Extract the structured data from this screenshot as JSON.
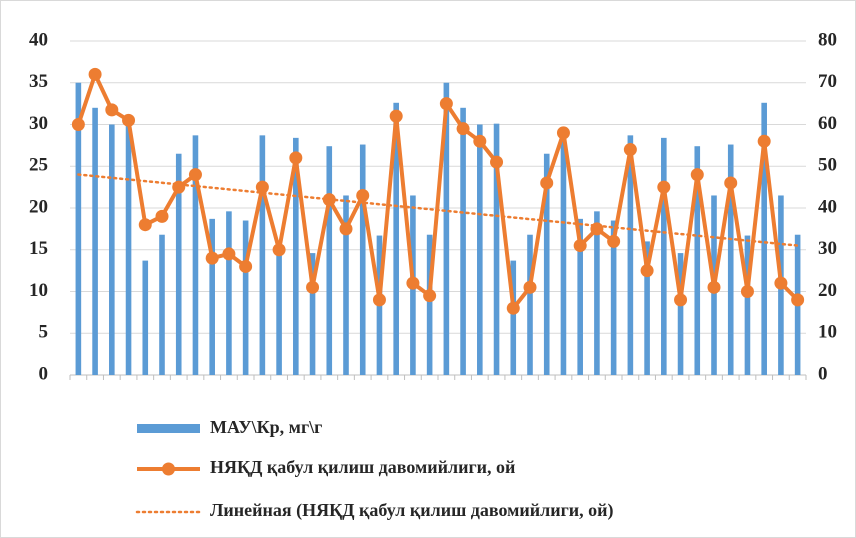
{
  "chart_data": {
    "type": "bar",
    "categories": [
      null,
      null,
      null,
      null,
      null,
      null,
      null,
      null,
      null,
      null,
      null,
      null,
      null,
      null,
      null,
      null,
      null,
      null,
      null,
      null,
      null,
      null,
      null,
      null,
      null,
      null,
      null,
      null,
      null,
      null,
      null,
      null,
      null,
      null,
      null,
      null,
      null,
      null,
      null,
      null,
      null,
      null,
      null,
      null
    ],
    "series": [
      {
        "name": "МАУ\\Кр, мг\\г",
        "color": "#5b9bd5",
        "type": "bar",
        "values": [
          35,
          32,
          30,
          30,
          13.7,
          16.8,
          26.5,
          28.7,
          18.7,
          19.6,
          18.5,
          28.7,
          16,
          28.4,
          14.6,
          27.4,
          21.5,
          27.6,
          16.7,
          32.6,
          21.5,
          16.8,
          35,
          32,
          30,
          30.1,
          13.7,
          16.8,
          26.5,
          28.7,
          18.7,
          19.6,
          18.5,
          28.7,
          16,
          28.4,
          14.6,
          27.4,
          21.5,
          27.6,
          16.7,
          32.6,
          21.5,
          16.8
        ]
      },
      {
        "name": "НЯҚД қабул қилиш давомийлиги, ой",
        "color": "#ed7d31",
        "type": "line",
        "axis": "y2",
        "values": [
          60,
          72,
          63.5,
          61,
          36,
          38,
          45,
          48,
          28,
          29,
          26,
          45,
          30,
          52,
          21,
          42,
          35,
          43,
          18,
          62,
          22,
          19,
          65,
          59,
          56,
          51,
          16,
          21,
          46,
          58,
          31,
          35,
          32,
          54,
          25,
          45,
          18,
          48,
          21,
          46,
          20,
          56,
          22,
          18
        ]
      }
    ],
    "trendline": {
      "name": "Линейная (НЯҚД қабул қилиш давомийлиги, ой)",
      "color": "#ed7d31",
      "series": 1
    },
    "ylim": [
      0,
      40
    ],
    "yticks": [
      0,
      5,
      10,
      15,
      20,
      25,
      30,
      35,
      40
    ],
    "y2lim": [
      0,
      80
    ],
    "y2ticks": [
      0,
      10,
      20,
      30,
      40,
      50,
      60,
      70,
      80
    ],
    "grid": true
  }
}
